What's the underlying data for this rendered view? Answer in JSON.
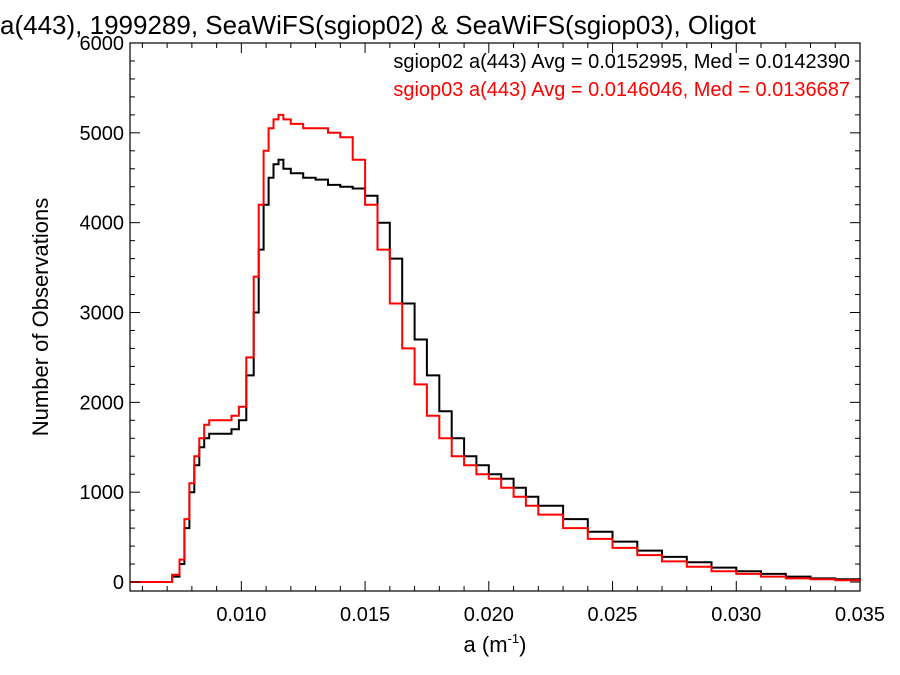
{
  "chart_data": {
    "type": "line",
    "title": "a(443), 1999289, SeaWiFS(sgiop02) & SeaWiFS(sgiop03), Oligot",
    "xlabel": "a (m",
    "xlabel_sup": "-1",
    "xlabel_close": ")",
    "ylabel": "Number of Observations",
    "xlim": [
      0.0055,
      0.035
    ],
    "ylim": [
      -100,
      6000
    ],
    "x_ticks": [
      0.01,
      0.015,
      0.02,
      0.025,
      0.03,
      0.035
    ],
    "x_tick_labels": [
      "0.010",
      "0.015",
      "0.020",
      "0.025",
      "0.030",
      "0.035"
    ],
    "y_ticks": [
      0,
      1000,
      2000,
      3000,
      4000,
      5000,
      6000
    ],
    "y_tick_labels": [
      "0",
      "1000",
      "2000",
      "3000",
      "4000",
      "5000",
      "6000"
    ],
    "grid": false,
    "legend_position": "top-right",
    "series": [
      {
        "name": "sgiop02 a(443) Avg = 0.0152995, Med = 0.0142390",
        "color": "#000000",
        "x": [
          0.0055,
          0.0068,
          0.0072,
          0.0075,
          0.0077,
          0.0079,
          0.0081,
          0.0083,
          0.0085,
          0.0087,
          0.009,
          0.0093,
          0.0096,
          0.0099,
          0.0102,
          0.0105,
          0.0107,
          0.0109,
          0.0111,
          0.0113,
          0.0115,
          0.0117,
          0.012,
          0.0125,
          0.013,
          0.0135,
          0.014,
          0.0145,
          0.015,
          0.0155,
          0.016,
          0.0165,
          0.017,
          0.0175,
          0.018,
          0.0185,
          0.019,
          0.0195,
          0.02,
          0.0205,
          0.021,
          0.0215,
          0.022,
          0.023,
          0.024,
          0.025,
          0.026,
          0.027,
          0.028,
          0.029,
          0.03,
          0.031,
          0.032,
          0.033,
          0.034,
          0.035
        ],
        "y": [
          0,
          0,
          60,
          200,
          600,
          1000,
          1300,
          1500,
          1600,
          1650,
          1650,
          1650,
          1700,
          1800,
          2300,
          3000,
          3700,
          4200,
          4500,
          4650,
          4700,
          4600,
          4550,
          4500,
          4480,
          4420,
          4400,
          4380,
          4300,
          4000,
          3600,
          3100,
          2700,
          2300,
          1900,
          1600,
          1400,
          1300,
          1200,
          1150,
          1050,
          950,
          850,
          700,
          560,
          450,
          350,
          280,
          220,
          160,
          120,
          90,
          60,
          40,
          30,
          20
        ]
      },
      {
        "name": "sgiop03 a(443) Avg = 0.0146046, Med = 0.0136687",
        "color": "#ff0000",
        "x": [
          0.0055,
          0.0068,
          0.0072,
          0.0075,
          0.0077,
          0.0079,
          0.0081,
          0.0083,
          0.0085,
          0.0087,
          0.009,
          0.0093,
          0.0096,
          0.0099,
          0.0102,
          0.0105,
          0.0107,
          0.0109,
          0.0111,
          0.0113,
          0.0115,
          0.0117,
          0.012,
          0.0125,
          0.013,
          0.0135,
          0.014,
          0.0145,
          0.015,
          0.0155,
          0.016,
          0.0165,
          0.017,
          0.0175,
          0.018,
          0.0185,
          0.019,
          0.0195,
          0.02,
          0.0205,
          0.021,
          0.0215,
          0.022,
          0.023,
          0.024,
          0.025,
          0.026,
          0.027,
          0.028,
          0.029,
          0.03,
          0.031,
          0.032,
          0.033,
          0.034,
          0.035
        ],
        "y": [
          0,
          0,
          80,
          250,
          700,
          1100,
          1400,
          1600,
          1750,
          1800,
          1800,
          1800,
          1850,
          1950,
          2500,
          3400,
          4200,
          4800,
          5050,
          5150,
          5200,
          5150,
          5100,
          5050,
          5050,
          5000,
          4950,
          4700,
          4200,
          3700,
          3100,
          2600,
          2200,
          1850,
          1600,
          1400,
          1300,
          1200,
          1150,
          1050,
          950,
          850,
          750,
          600,
          480,
          380,
          300,
          230,
          170,
          120,
          90,
          60,
          40,
          30,
          20,
          15
        ]
      }
    ]
  }
}
